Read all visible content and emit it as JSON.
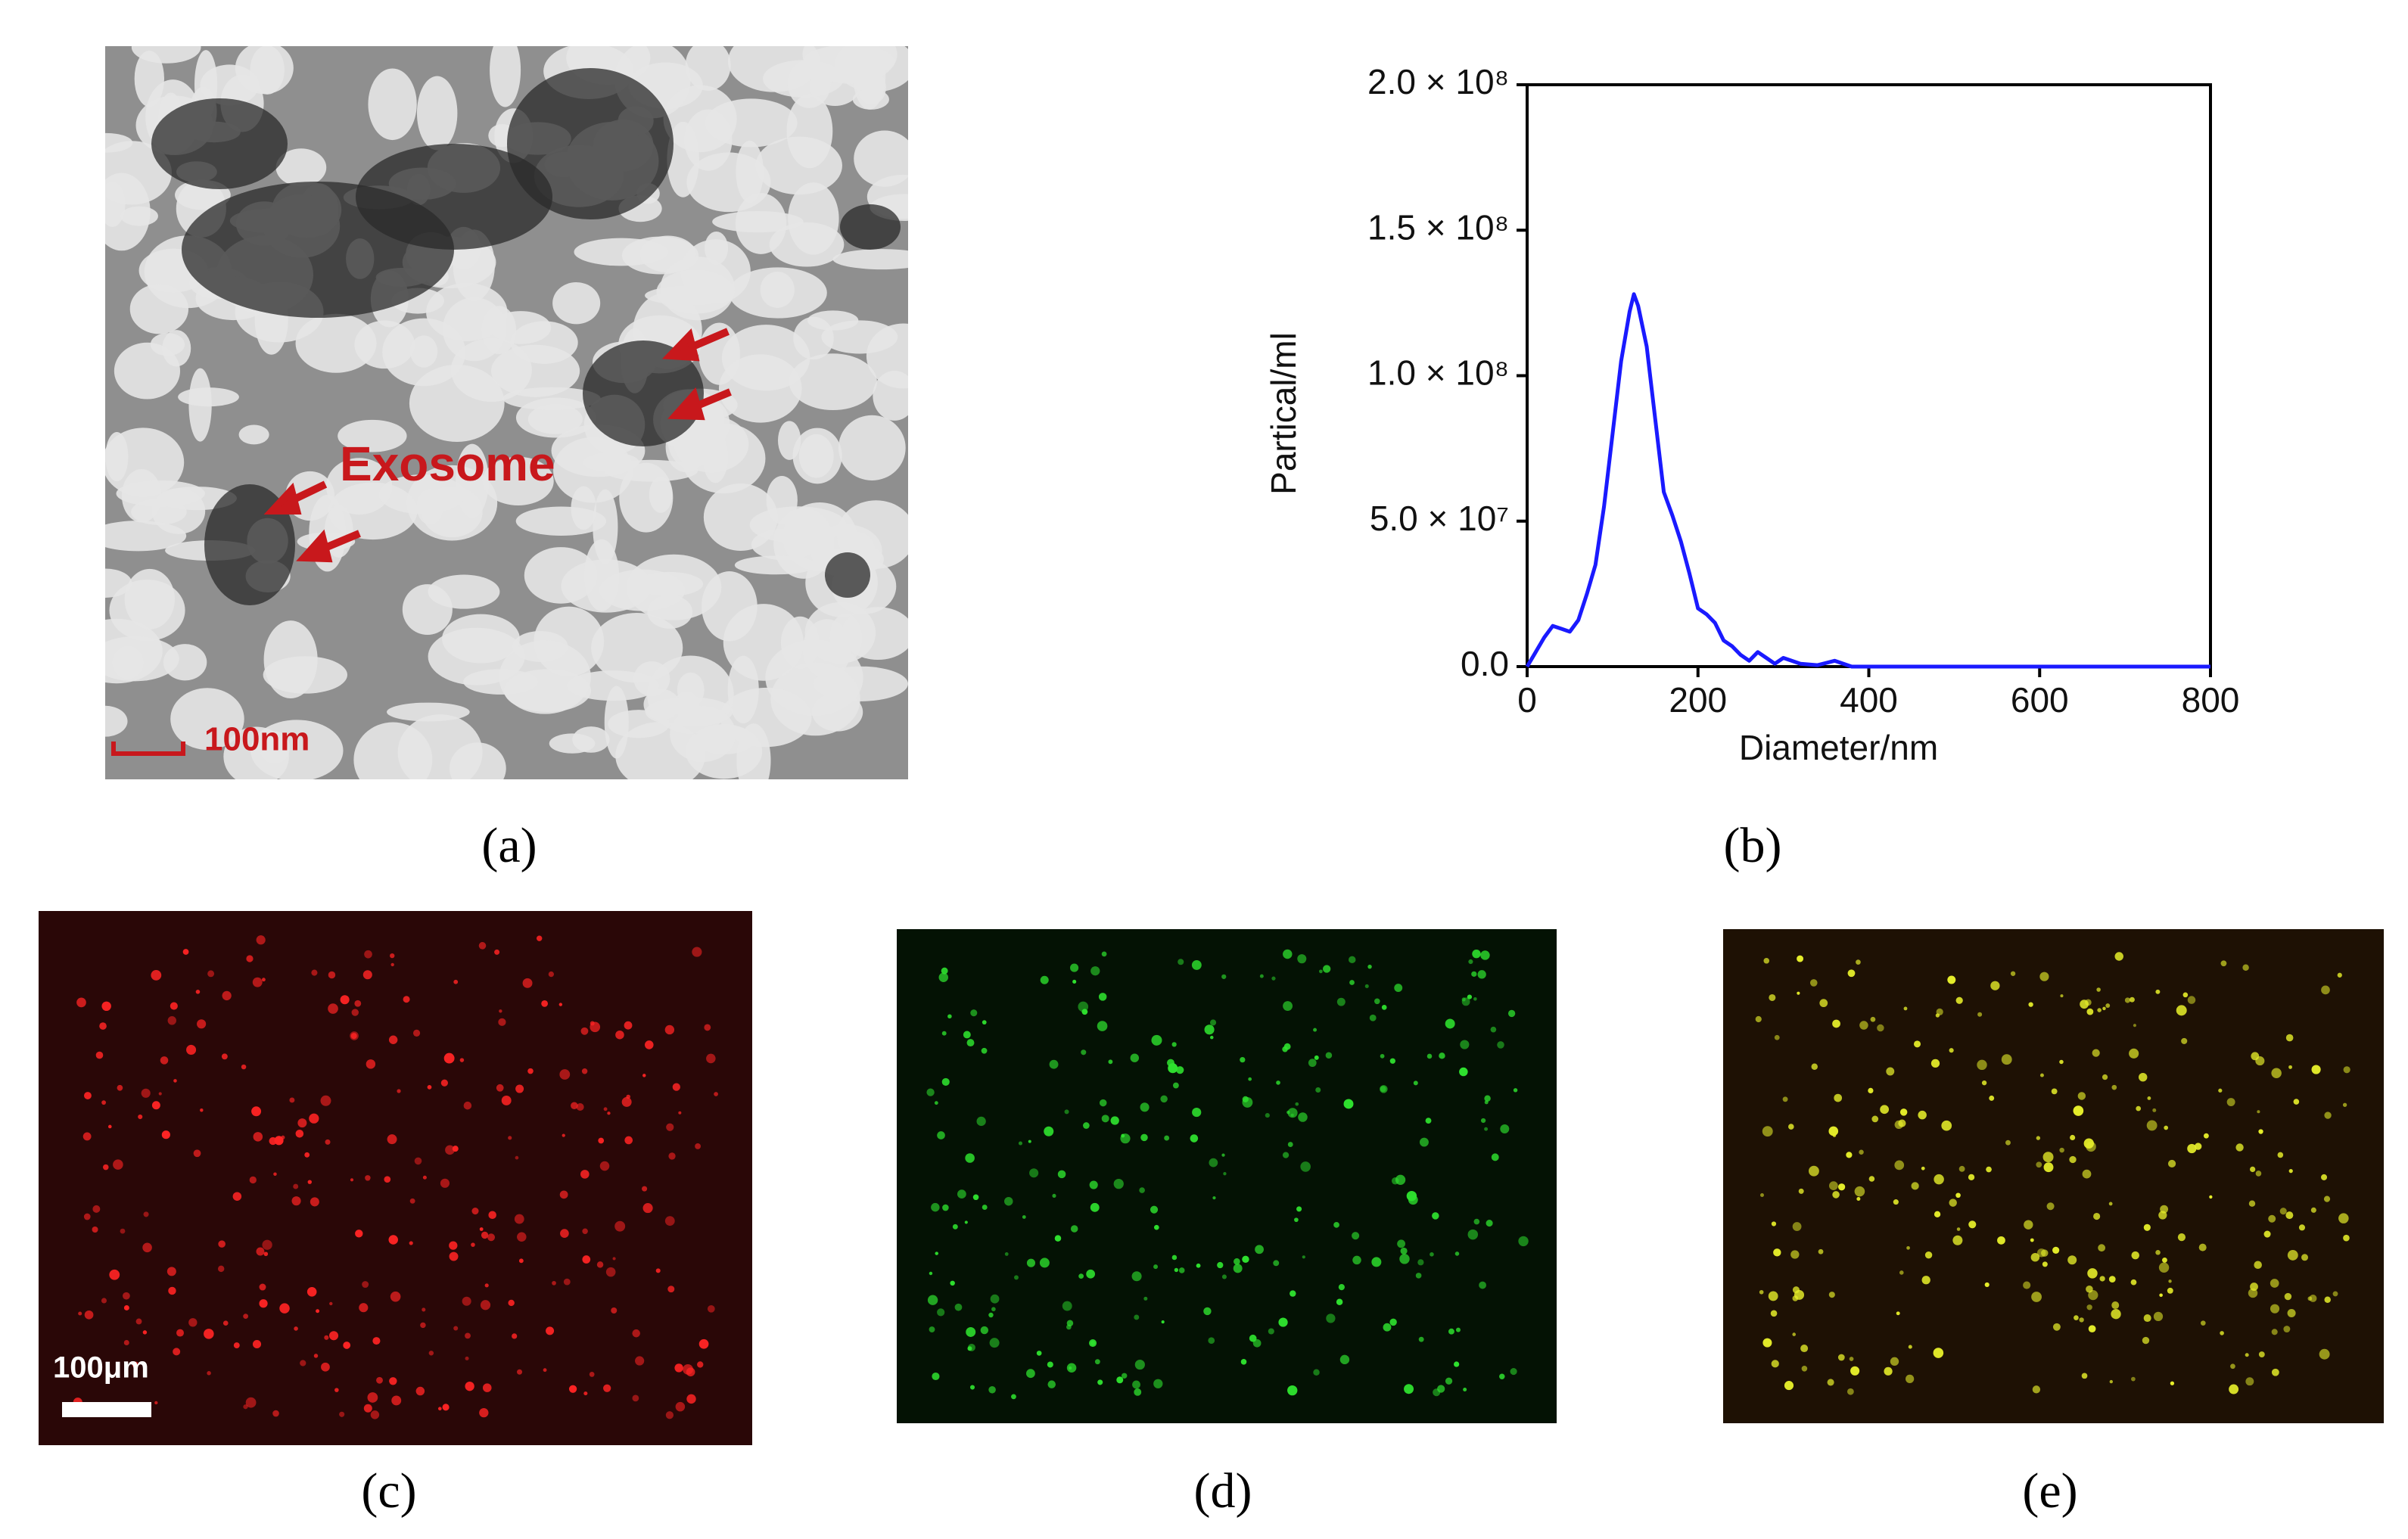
{
  "chart_data": {
    "type": "line",
    "xlabel": "Diameter/nm",
    "ylabel": "Partical/ml",
    "color": "#1a1aff",
    "x": [
      0,
      10,
      20,
      30,
      40,
      50,
      60,
      70,
      80,
      90,
      100,
      110,
      120,
      125,
      130,
      140,
      150,
      160,
      170,
      180,
      190,
      200,
      210,
      220,
      230,
      240,
      250,
      260,
      270,
      280,
      290,
      300,
      320,
      340,
      360,
      380,
      400,
      500,
      600,
      700,
      800
    ],
    "values": [
      0,
      5000000,
      10000000,
      14000000,
      13000000,
      12000000,
      16000000,
      25000000,
      35000000,
      55000000,
      80000000,
      105000000,
      122000000,
      128000000,
      124000000,
      110000000,
      85000000,
      60000000,
      52000000,
      43000000,
      32000000,
      20000000,
      18000000,
      15000000,
      9000000,
      7000000,
      4000000,
      2000000,
      5000000,
      3000000,
      1000000,
      3000000,
      1000000,
      500000,
      2000000,
      0,
      0,
      0,
      0,
      0,
      0
    ],
    "xlim": [
      0,
      800
    ],
    "xticks": [
      0,
      200,
      400,
      600,
      800
    ],
    "ylim": [
      0,
      200000000
    ],
    "yticks": [
      {
        "value": 0,
        "label": "0.0"
      },
      {
        "value": 50000000,
        "label": "5.0 × 10⁷"
      },
      {
        "value": 100000000,
        "label": "1.0 × 10⁸"
      },
      {
        "value": 150000000,
        "label": "1.5 × 10⁸"
      },
      {
        "value": 200000000,
        "label": "2.0 × 10⁸"
      }
    ]
  },
  "panels": {
    "a": {
      "label": "(a)",
      "annotation": "Exosome",
      "scale_bar": "100nm"
    },
    "b": {
      "label": "(b)"
    },
    "c": {
      "label": "(c)",
      "scale_bar": "100μm"
    },
    "d": {
      "label": "(d)"
    },
    "e": {
      "label": "(e)"
    }
  }
}
